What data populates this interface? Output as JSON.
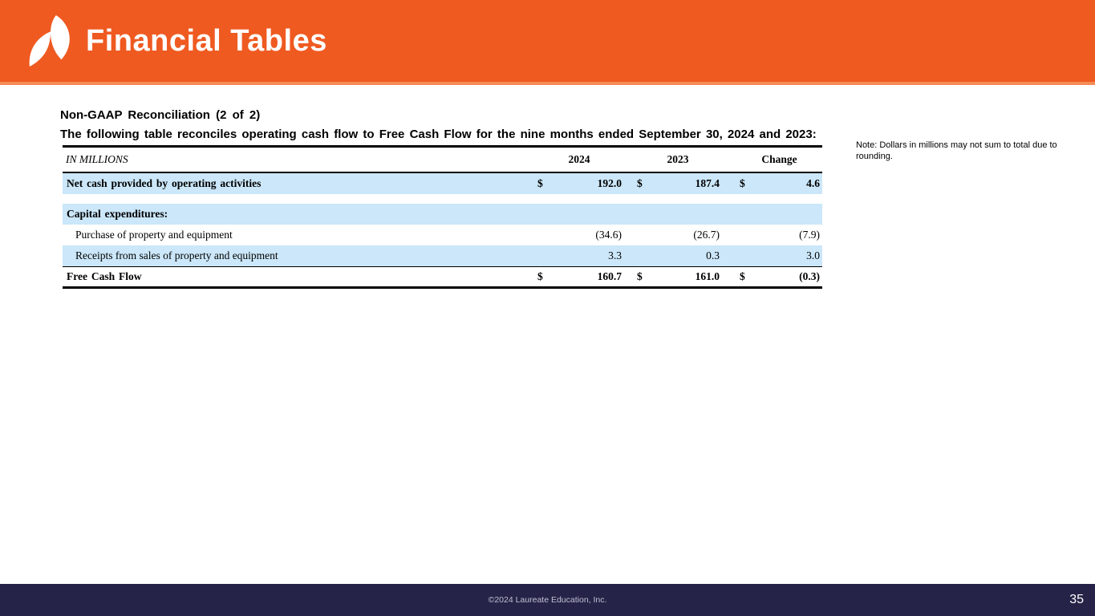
{
  "banner": {
    "title": "Financial Tables",
    "logo": "laureate-leaf-logo"
  },
  "slide": {
    "title": "Non-GAAP Reconciliation (2 of 2)",
    "subtitle": "The following table reconciles operating cash flow to Free Cash Flow for the nine months ended September 30, 2024 and 2023:",
    "note": "Note:  Dollars in millions may not sum to total due to rounding."
  },
  "table": {
    "header": {
      "in_millions": "IN MILLIONS",
      "y2024": "2024",
      "y2023": "2023",
      "change": "Change"
    },
    "rows": [
      {
        "label": "Net cash provided by operating activities",
        "style": "bold",
        "bg": "blue",
        "indent": false,
        "cells": [
          "$",
          "192.0",
          "$",
          "187.4",
          "$",
          "4.6"
        ]
      },
      {
        "spacer": true
      },
      {
        "label": "Capital expenditures:",
        "style": "bold",
        "bg": "blue",
        "indent": false,
        "cells": [
          "",
          "",
          "",
          "",
          "",
          ""
        ]
      },
      {
        "label": "Purchase of property and equipment",
        "style": "normal",
        "bg": "white",
        "indent": true,
        "cells": [
          "",
          "(34.6)",
          "",
          "(26.7)",
          "",
          "(7.9)"
        ]
      },
      {
        "label": "Receipts from sales of property and equipment",
        "style": "normal",
        "bg": "blue",
        "indent": true,
        "cells": [
          "",
          "3.3",
          "",
          "0.3",
          "",
          "3.0"
        ]
      },
      {
        "label": "Free Cash Flow",
        "style": "bold",
        "bg": "white",
        "indent": false,
        "top_border": true,
        "last": true,
        "cells": [
          "$",
          "160.7",
          "$",
          "161.0",
          "$",
          "(0.3)"
        ]
      }
    ]
  },
  "footer": {
    "copyright": "©2024 Laureate Education, Inc.",
    "page_number": "35"
  },
  "colors": {
    "accent_orange": "#EF5A21",
    "row_blue": "#CBE7F9",
    "footer_navy": "#252347"
  }
}
